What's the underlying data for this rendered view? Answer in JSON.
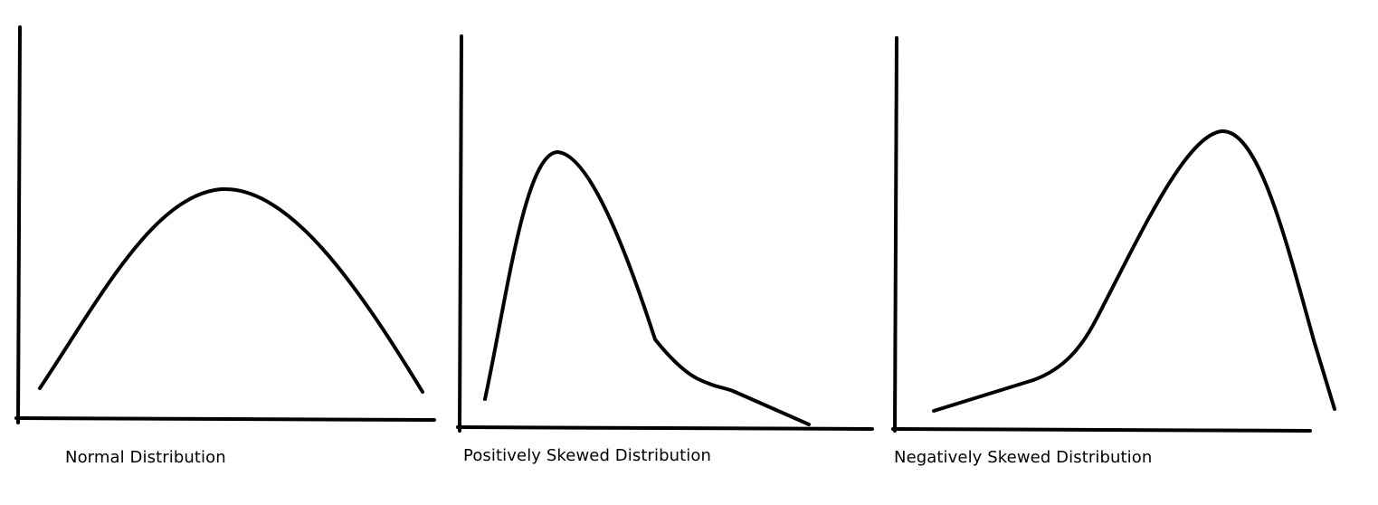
{
  "panels": [
    {
      "id": "normal",
      "caption": "Normal Distribution"
    },
    {
      "id": "positive",
      "caption": "Positively Skewed Distribution"
    },
    {
      "id": "negative",
      "caption": "Negatively Skewed Distribution"
    }
  ],
  "colors": {
    "ink": "#000000",
    "background": "#ffffff"
  }
}
